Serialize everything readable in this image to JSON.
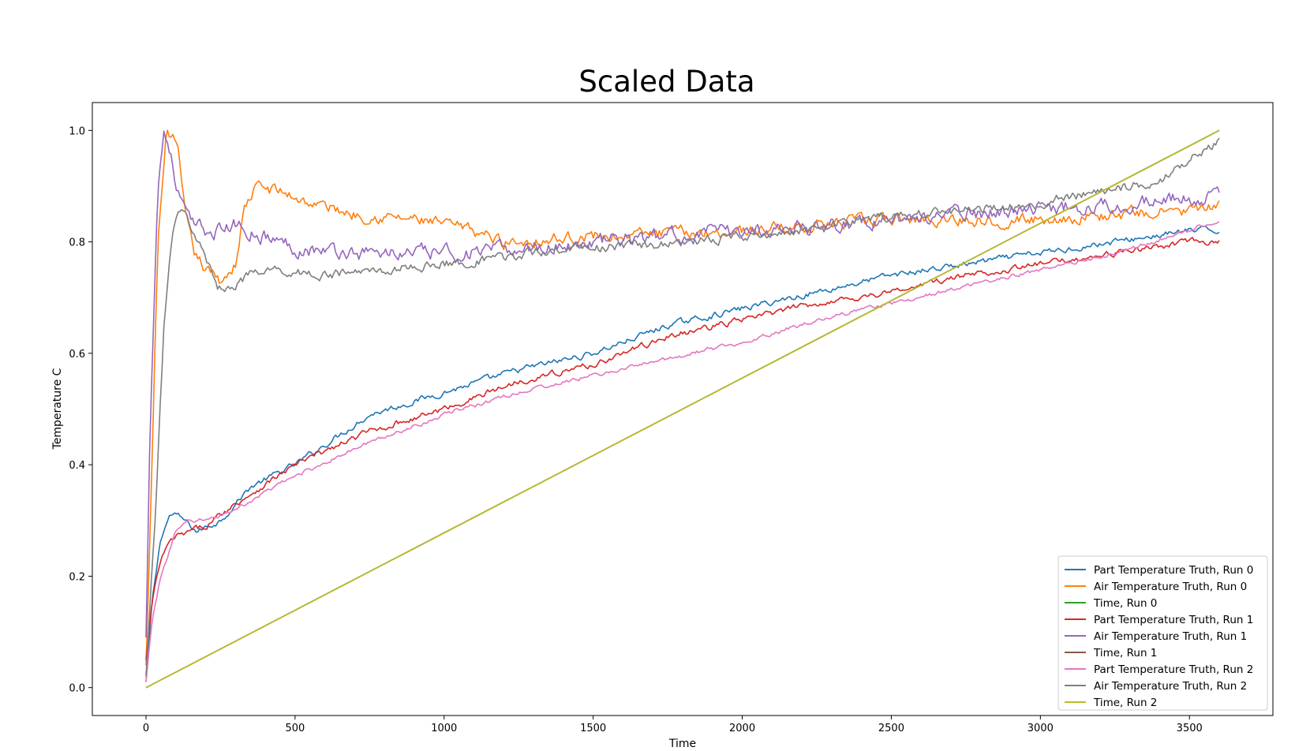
{
  "chart_data": {
    "type": "line",
    "title": "Scaled Data",
    "xlabel": "Time",
    "ylabel": "Temperature C",
    "xlim": [
      -180,
      3780
    ],
    "ylim": [
      -0.05,
      1.05
    ],
    "xticks": [
      0,
      500,
      1000,
      1500,
      2000,
      2500,
      3000,
      3500
    ],
    "yticks": [
      0.0,
      0.2,
      0.4,
      0.6,
      0.8,
      1.0
    ],
    "xtick_labels": [
      "0",
      "500",
      "1000",
      "1500",
      "2000",
      "2500",
      "3000",
      "3500"
    ],
    "ytick_labels": [
      "0.0",
      "0.2",
      "0.4",
      "0.6",
      "0.8",
      "1.0"
    ],
    "grid": false,
    "legend_position": "lower-right",
    "series": [
      {
        "name": "Part Temperature Truth, Run 0",
        "color": "#1f77b4",
        "x": [
          0,
          20,
          50,
          80,
          100,
          130,
          170,
          250,
          350,
          500,
          750,
          1000,
          1250,
          1500,
          1750,
          2000,
          2250,
          2500,
          2750,
          3000,
          3250,
          3500,
          3600
        ],
        "y": [
          0.01,
          0.15,
          0.27,
          0.31,
          0.31,
          0.3,
          0.28,
          0.3,
          0.36,
          0.4,
          0.49,
          0.53,
          0.57,
          0.6,
          0.65,
          0.68,
          0.71,
          0.74,
          0.76,
          0.78,
          0.8,
          0.82,
          0.82
        ]
      },
      {
        "name": "Air Temperature Truth, Run 0",
        "color": "#ff7f0e",
        "x": [
          0,
          15,
          40,
          70,
          90,
          110,
          130,
          160,
          200,
          250,
          300,
          330,
          370,
          450,
          550,
          700,
          900,
          1000,
          1100,
          1200,
          1500,
          2000,
          2500,
          3000,
          3600
        ],
        "y": [
          0.04,
          0.3,
          0.8,
          1.0,
          0.99,
          0.95,
          0.85,
          0.78,
          0.75,
          0.73,
          0.76,
          0.86,
          0.9,
          0.89,
          0.87,
          0.85,
          0.84,
          0.83,
          0.82,
          0.8,
          0.81,
          0.82,
          0.84,
          0.84,
          0.86
        ]
      },
      {
        "name": "Time, Run 0",
        "color": "#2ca02c",
        "x": [
          0,
          3600
        ],
        "y": [
          0.0,
          1.0
        ]
      },
      {
        "name": "Part Temperature Truth, Run 1",
        "color": "#d62728",
        "x": [
          0,
          20,
          50,
          80,
          100,
          150,
          200,
          300,
          500,
          750,
          1000,
          1250,
          1500,
          1750,
          2000,
          2250,
          2500,
          2750,
          3000,
          3250,
          3500,
          3600
        ],
        "y": [
          0.05,
          0.15,
          0.23,
          0.26,
          0.27,
          0.28,
          0.29,
          0.33,
          0.4,
          0.46,
          0.5,
          0.55,
          0.58,
          0.63,
          0.66,
          0.69,
          0.71,
          0.74,
          0.76,
          0.78,
          0.8,
          0.8
        ]
      },
      {
        "name": "Air Temperature Truth, Run 1",
        "color": "#9467bd",
        "x": [
          0,
          15,
          40,
          60,
          80,
          100,
          120,
          150,
          200,
          250,
          300,
          350,
          400,
          500,
          700,
          900,
          1100,
          1300,
          1500,
          2000,
          2500,
          3000,
          3300,
          3600
        ],
        "y": [
          0.09,
          0.5,
          0.9,
          1.0,
          0.97,
          0.9,
          0.87,
          0.83,
          0.82,
          0.82,
          0.83,
          0.82,
          0.81,
          0.79,
          0.78,
          0.78,
          0.78,
          0.79,
          0.8,
          0.82,
          0.84,
          0.86,
          0.87,
          0.88
        ]
      },
      {
        "name": "Time, Run 1",
        "color": "#8c564b",
        "x": [
          0,
          3600
        ],
        "y": [
          0.0,
          1.0
        ]
      },
      {
        "name": "Part Temperature Truth, Run 2",
        "color": "#e377c2",
        "x": [
          0,
          20,
          50,
          80,
          100,
          150,
          200,
          300,
          500,
          750,
          1000,
          1250,
          1500,
          1750,
          2000,
          2250,
          2500,
          2750,
          3000,
          3250,
          3500,
          3600
        ],
        "y": [
          0.01,
          0.12,
          0.2,
          0.25,
          0.28,
          0.3,
          0.3,
          0.32,
          0.38,
          0.44,
          0.49,
          0.53,
          0.56,
          0.59,
          0.62,
          0.66,
          0.69,
          0.72,
          0.75,
          0.78,
          0.82,
          0.84
        ]
      },
      {
        "name": "Air Temperature Truth, Run 2",
        "color": "#7f7f7f",
        "x": [
          0,
          30,
          60,
          90,
          110,
          130,
          160,
          200,
          240,
          280,
          350,
          450,
          600,
          800,
          1000,
          1200,
          1400,
          1600,
          1800,
          2000,
          2200,
          2400,
          2600,
          2800,
          3000,
          3200,
          3400,
          3500,
          3600
        ],
        "y": [
          0.02,
          0.3,
          0.65,
          0.82,
          0.85,
          0.85,
          0.82,
          0.77,
          0.72,
          0.72,
          0.74,
          0.75,
          0.74,
          0.75,
          0.76,
          0.77,
          0.79,
          0.79,
          0.8,
          0.81,
          0.82,
          0.84,
          0.85,
          0.86,
          0.87,
          0.89,
          0.91,
          0.95,
          0.98
        ]
      },
      {
        "name": "Time, Run 2",
        "color": "#bcbd22",
        "x": [
          0,
          3600
        ],
        "y": [
          0.0,
          1.0
        ]
      }
    ]
  }
}
